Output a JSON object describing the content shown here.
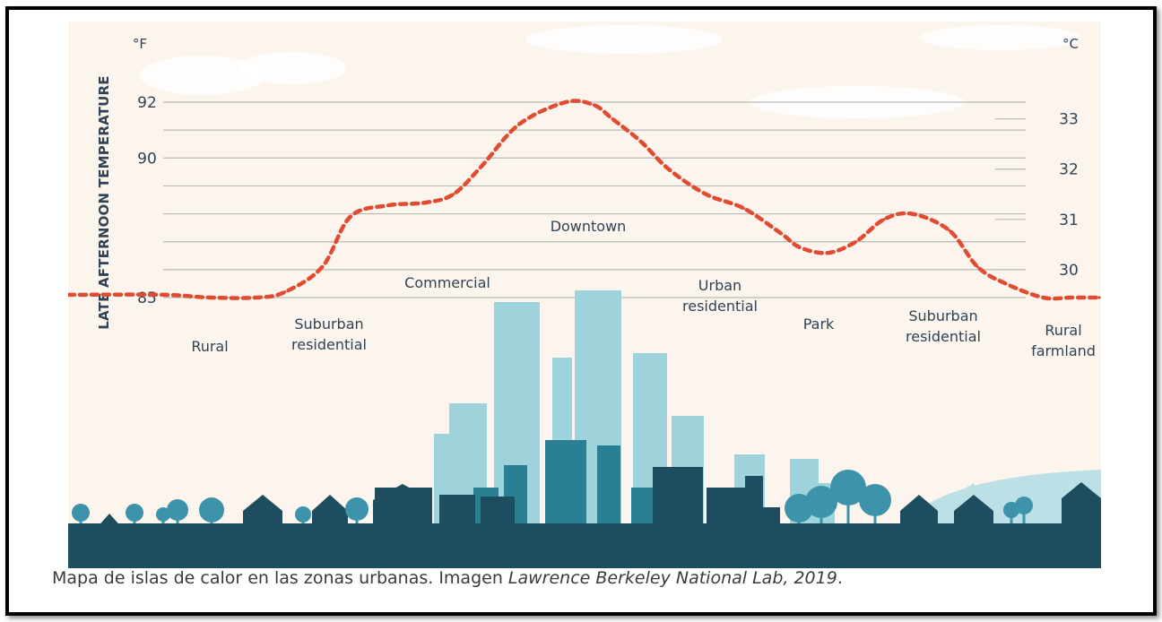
{
  "caption": {
    "text": "Mapa de islas de calor en las zonas urbanas. Imagen ",
    "credit": "Lawrence Berkeley National Lab, 2019",
    "end": "."
  },
  "chart_data": {
    "type": "line",
    "title": "",
    "ylabel": "LATE AFTERNOON TEMPERATURE",
    "left_unit": "°F",
    "right_unit": "°C",
    "left_ticks": [
      85,
      90,
      92
    ],
    "right_ticks": [
      30,
      31,
      32,
      33
    ],
    "ylim_f": [
      85,
      92
    ],
    "series": [
      {
        "name": "Late afternoon temperature",
        "style": "dashed",
        "color": "#e14b32",
        "x": [
          0,
          5,
          10,
          13,
          17,
          20,
          24,
          28,
          31,
          34,
          38,
          43,
          46,
          48,
          51,
          54,
          58,
          62,
          66,
          68,
          71,
          74,
          77,
          80,
          84,
          87,
          90,
          94,
          97,
          100
        ],
        "values": [
          85.1,
          85.0,
          85.0,
          85.2,
          86.1,
          87.9,
          88.3,
          88.4,
          88.7,
          89.7,
          91.2,
          92.0,
          91.9,
          91.4,
          90.6,
          89.6,
          88.7,
          88.2,
          87.3,
          86.8,
          86.6,
          87.0,
          87.8,
          88.0,
          87.4,
          86.1,
          85.5,
          85.0,
          85.0,
          85.0
        ]
      }
    ],
    "zones": [
      {
        "label": "Rural"
      },
      {
        "label": "Suburban residential"
      },
      {
        "label": "Commercial"
      },
      {
        "label": "Downtown"
      },
      {
        "label": "Urban residential"
      },
      {
        "label": "Park"
      },
      {
        "label": "Suburban residential"
      },
      {
        "label": "Rural farmland"
      }
    ]
  },
  "colors": {
    "background": "#fcf5ee",
    "gridline": "#b9b9b9",
    "dash_line": "#e14b32",
    "text": "#2f4354",
    "ground": "#1f4d60",
    "building_dark": "#1f4d60",
    "building_mid": "#2b7f93",
    "building_light": "#9ed3dc",
    "tree": "#3d93aa",
    "hill": "#bde0e6"
  }
}
